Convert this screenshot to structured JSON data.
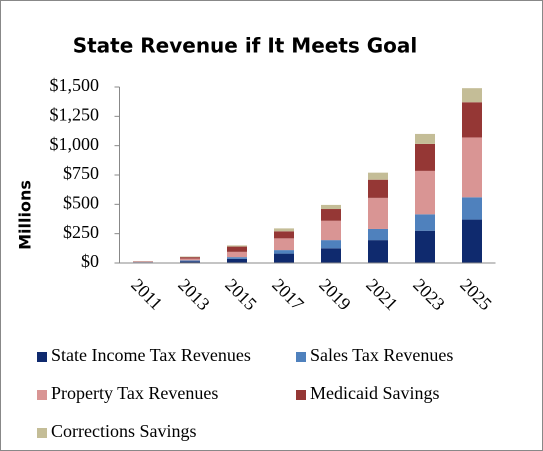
{
  "chart_data": {
    "type": "stacked-bar",
    "title": "State Revenue if It Meets Goal",
    "y_label": "Millions",
    "categories": [
      "2011",
      "2013",
      "2015",
      "2017",
      "2019",
      "2021",
      "2023",
      "2025"
    ],
    "series": [
      {
        "name": "State Income Tax Revenues",
        "color": "#0f2a6e",
        "values": [
          5,
          15,
          35,
          80,
          125,
          195,
          275,
          370
        ]
      },
      {
        "name": "Sales Tax Revenues",
        "color": "#4f81bd",
        "values": [
          2,
          8,
          15,
          30,
          70,
          95,
          140,
          190
        ]
      },
      {
        "name": "Property Tax Revenues",
        "color": "#d99594",
        "values": [
          4,
          15,
          45,
          100,
          165,
          265,
          370,
          510
        ]
      },
      {
        "name": "Medicaid Savings",
        "color": "#953735",
        "values": [
          3,
          12,
          45,
          60,
          100,
          155,
          230,
          300
        ]
      },
      {
        "name": "Corrections Savings",
        "color": "#c4bd97",
        "values": [
          1,
          5,
          10,
          25,
          35,
          60,
          85,
          120
        ]
      }
    ],
    "ylim": [
      0,
      1500
    ],
    "yticks": [
      {
        "value": 0,
        "label": "$0"
      },
      {
        "value": 250,
        "label": "$250"
      },
      {
        "value": 500,
        "label": "$500"
      },
      {
        "value": 750,
        "label": "$750"
      },
      {
        "value": 1000,
        "label": "$1,000"
      },
      {
        "value": 1250,
        "label": "$1,250"
      },
      {
        "value": 1500,
        "label": "$1,500"
      }
    ],
    "grid": false
  }
}
